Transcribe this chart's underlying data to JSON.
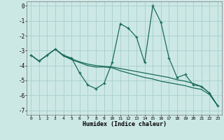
{
  "xlabel": "Humidex (Indice chaleur)",
  "bg_color": "#cce8e5",
  "grid_color": "#a8ceca",
  "line_color": "#1a6b5a",
  "xlim": [
    -0.5,
    23.5
  ],
  "ylim": [
    -7.3,
    0.3
  ],
  "xticks": [
    0,
    1,
    2,
    3,
    4,
    5,
    6,
    7,
    8,
    9,
    10,
    11,
    12,
    13,
    14,
    15,
    16,
    17,
    18,
    19,
    20,
    21,
    22,
    23
  ],
  "yticks": [
    0,
    -1,
    -2,
    -3,
    -4,
    -5,
    -6,
    -7
  ],
  "series1": [
    [
      0,
      -3.3
    ],
    [
      1,
      -3.7
    ],
    [
      2,
      -3.3
    ],
    [
      3,
      -2.9
    ],
    [
      4,
      -3.3
    ],
    [
      5,
      -3.5
    ],
    [
      6,
      -4.5
    ],
    [
      7,
      -5.3
    ],
    [
      8,
      -5.55
    ],
    [
      9,
      -5.2
    ],
    [
      10,
      -3.8
    ],
    [
      11,
      -1.2
    ],
    [
      12,
      -1.5
    ],
    [
      13,
      -2.1
    ],
    [
      14,
      -3.8
    ],
    [
      15,
      0.0
    ],
    [
      16,
      -1.1
    ],
    [
      17,
      -3.5
    ],
    [
      18,
      -4.8
    ],
    [
      19,
      -4.6
    ],
    [
      20,
      -5.3
    ],
    [
      21,
      -5.4
    ],
    [
      22,
      -5.85
    ],
    [
      23,
      -6.7
    ]
  ],
  "series2": [
    [
      0,
      -3.3
    ],
    [
      1,
      -3.7
    ],
    [
      2,
      -3.3
    ],
    [
      3,
      -2.9
    ],
    [
      4,
      -3.35
    ],
    [
      5,
      -3.55
    ],
    [
      6,
      -3.75
    ],
    [
      7,
      -3.9
    ],
    [
      8,
      -4.0
    ],
    [
      9,
      -4.05
    ],
    [
      10,
      -4.1
    ],
    [
      11,
      -4.2
    ],
    [
      12,
      -4.3
    ],
    [
      13,
      -4.4
    ],
    [
      14,
      -4.5
    ],
    [
      15,
      -4.6
    ],
    [
      16,
      -4.7
    ],
    [
      17,
      -4.8
    ],
    [
      18,
      -4.95
    ],
    [
      19,
      -5.05
    ],
    [
      20,
      -5.2
    ],
    [
      21,
      -5.4
    ],
    [
      22,
      -5.85
    ],
    [
      23,
      -6.7
    ]
  ],
  "series3": [
    [
      0,
      -3.3
    ],
    [
      1,
      -3.7
    ],
    [
      2,
      -3.3
    ],
    [
      3,
      -2.9
    ],
    [
      4,
      -3.35
    ],
    [
      5,
      -3.6
    ],
    [
      6,
      -3.8
    ],
    [
      7,
      -4.0
    ],
    [
      8,
      -4.1
    ],
    [
      9,
      -4.1
    ],
    [
      10,
      -4.15
    ],
    [
      11,
      -4.35
    ],
    [
      12,
      -4.5
    ],
    [
      13,
      -4.65
    ],
    [
      14,
      -4.8
    ],
    [
      15,
      -4.9
    ],
    [
      16,
      -5.05
    ],
    [
      17,
      -5.15
    ],
    [
      18,
      -5.25
    ],
    [
      19,
      -5.35
    ],
    [
      20,
      -5.5
    ],
    [
      21,
      -5.6
    ],
    [
      22,
      -5.95
    ],
    [
      23,
      -6.7
    ]
  ]
}
